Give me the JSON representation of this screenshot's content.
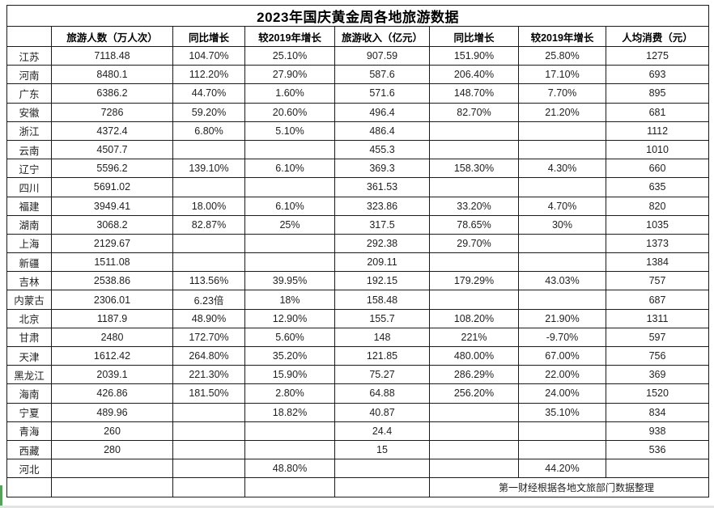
{
  "title": "2023年国庆黄金周各地旅游数据",
  "columns": [
    "",
    "旅游人数（万人次）",
    "同比增长",
    "较2019年增长",
    "旅游收入（亿元）",
    "同比增长",
    "较2019年增长",
    "人均消费（元）"
  ],
  "rows": [
    [
      "江苏",
      "7118.48",
      "104.70%",
      "25.10%",
      "907.59",
      "151.90%",
      "25.80%",
      "1275"
    ],
    [
      "河南",
      "8480.1",
      "112.20%",
      "27.90%",
      "587.6",
      "206.40%",
      "17.10%",
      "693"
    ],
    [
      "广东",
      "6386.2",
      "44.70%",
      "1.60%",
      "571.6",
      "148.70%",
      "7.70%",
      "895"
    ],
    [
      "安徽",
      "7286",
      "59.20%",
      "20.60%",
      "496.4",
      "82.70%",
      "21.20%",
      "681"
    ],
    [
      "浙江",
      "4372.4",
      "6.80%",
      "5.10%",
      "486.4",
      "",
      "",
      "1112"
    ],
    [
      "云南",
      "4507.7",
      "",
      "",
      "455.3",
      "",
      "",
      "1010"
    ],
    [
      "辽宁",
      "5596.2",
      "139.10%",
      "6.10%",
      "369.3",
      "158.30%",
      "4.30%",
      "660"
    ],
    [
      "四川",
      "5691.02",
      "",
      "",
      "361.53",
      "",
      "",
      "635"
    ],
    [
      "福建",
      "3949.41",
      "18.00%",
      "6.10%",
      "323.86",
      "33.20%",
      "4.70%",
      "820"
    ],
    [
      "湖南",
      "3068.2",
      "82.87%",
      "25%",
      "317.5",
      "78.65%",
      "30%",
      "1035"
    ],
    [
      "上海",
      "2129.67",
      "",
      "",
      "292.38",
      "29.70%",
      "",
      "1373"
    ],
    [
      "新疆",
      "1511.08",
      "",
      "",
      "209.11",
      "",
      "",
      "1384"
    ],
    [
      "吉林",
      "2538.86",
      "113.56%",
      "39.95%",
      "192.15",
      "179.29%",
      "43.03%",
      "757"
    ],
    [
      "内蒙古",
      "2306.01",
      "6.23倍",
      "18%",
      "158.48",
      "",
      "",
      "687"
    ],
    [
      "北京",
      "1187.9",
      "48.90%",
      "12.90%",
      "155.7",
      "108.20%",
      "21.90%",
      "1311"
    ],
    [
      "甘肃",
      "2480",
      "172.70%",
      "5.60%",
      "148",
      "221%",
      "-9.70%",
      "597"
    ],
    [
      "天津",
      "1612.42",
      "264.80%",
      "35.20%",
      "121.85",
      "480.00%",
      "67.00%",
      "756"
    ],
    [
      "黑龙江",
      "2039.1",
      "221.30%",
      "15.90%",
      "75.27",
      "286.29%",
      "22.00%",
      "369"
    ],
    [
      "海南",
      "426.86",
      "181.50%",
      "2.80%",
      "64.88",
      "256.20%",
      "24.00%",
      "1520"
    ],
    [
      "宁夏",
      "489.96",
      "",
      "18.82%",
      "40.87",
      "",
      "35.10%",
      "834"
    ],
    [
      "青海",
      "260",
      "",
      "",
      "24.4",
      "",
      "",
      "938"
    ],
    [
      "西藏",
      "280",
      "",
      "",
      "15",
      "",
      "",
      "536"
    ],
    [
      "河北",
      "",
      "",
      "48.80%",
      "",
      "",
      "44.20%",
      ""
    ]
  ],
  "footer": {
    "empty_cells": [
      "",
      "",
      "",
      "",
      ""
    ],
    "note": "第一财经根据各地文旅部门数据整理"
  },
  "colors": {
    "selection_green": "#57a25b",
    "grid_line": "#1a1a1a",
    "text": "#1f1f1f",
    "background": "#ffffff"
  }
}
